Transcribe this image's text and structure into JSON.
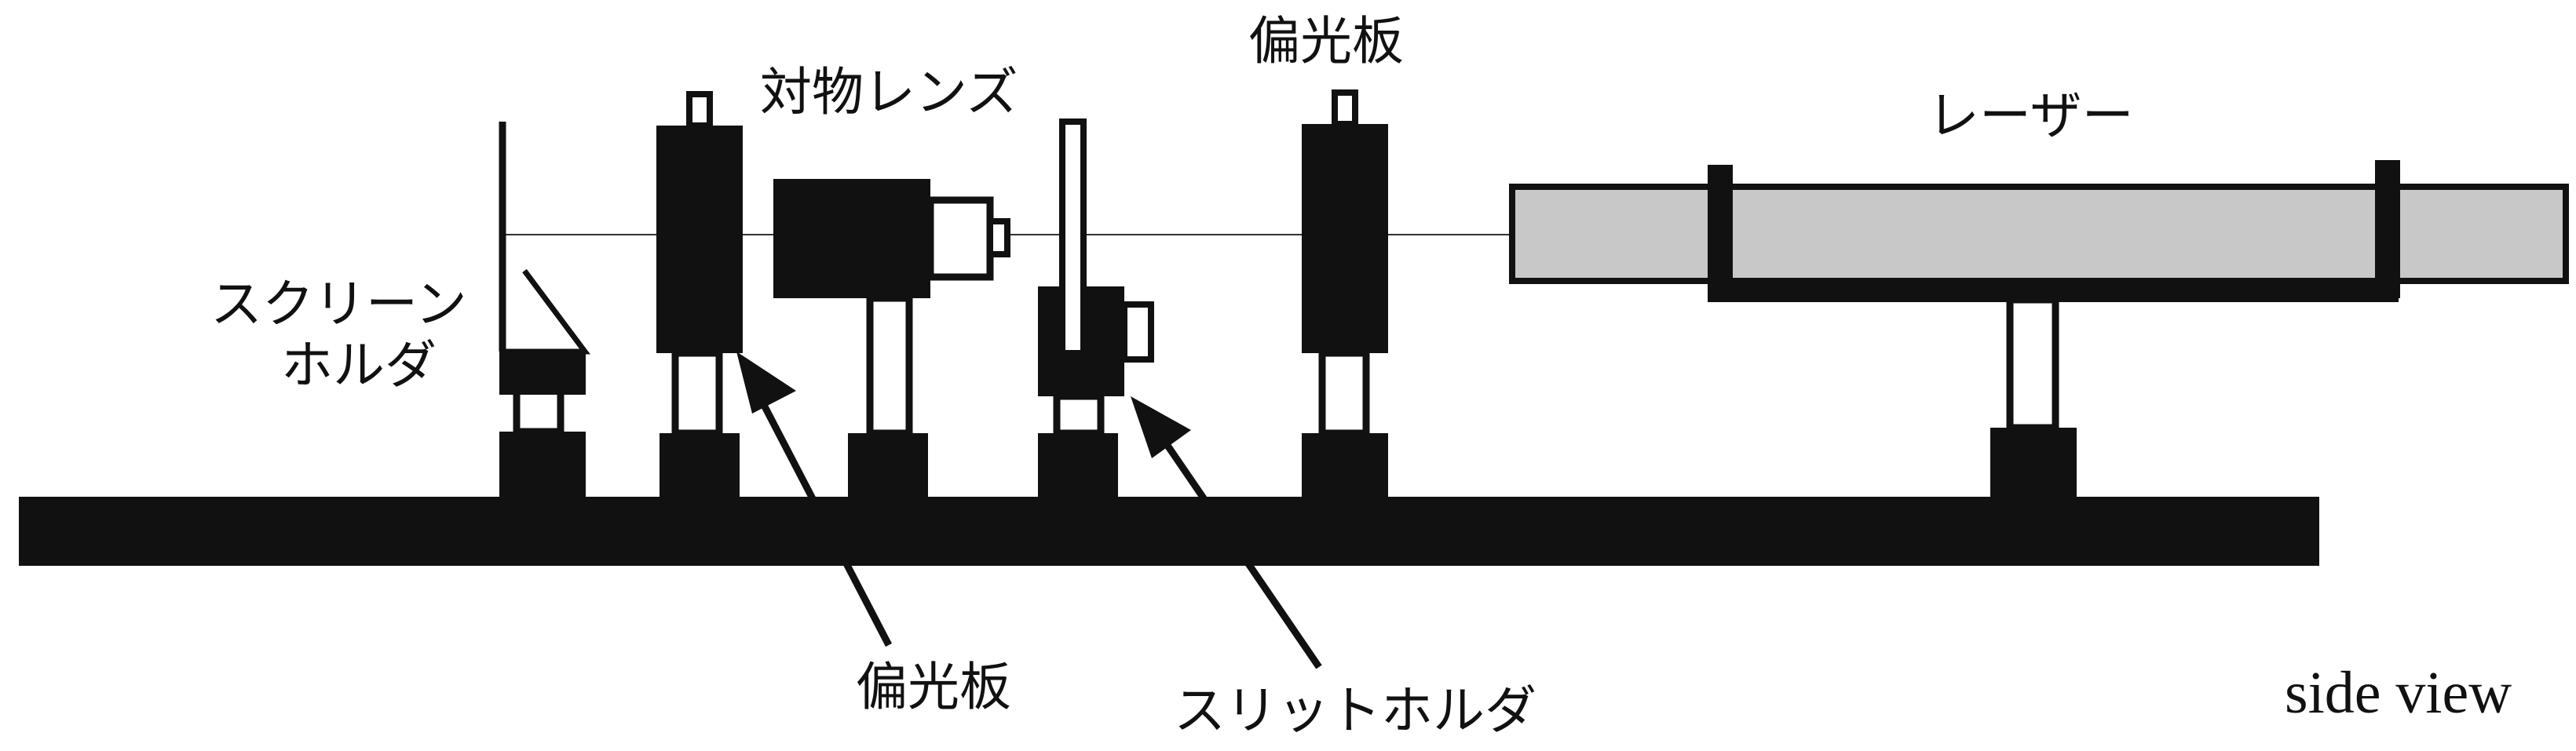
{
  "labels": {
    "objective_lens": "対物レンズ",
    "polarizer_top": "偏光板",
    "laser": "レーザー",
    "screen_holder_line1": "スクリーン",
    "screen_holder_line2": "ホルダ",
    "polarizer_bottom": "偏光板",
    "slit_holder": "スリットホルダ",
    "view": "side view"
  },
  "colors": {
    "ink": "#111111",
    "laser_fill": "#c8c8c8",
    "background": "#ffffff"
  }
}
